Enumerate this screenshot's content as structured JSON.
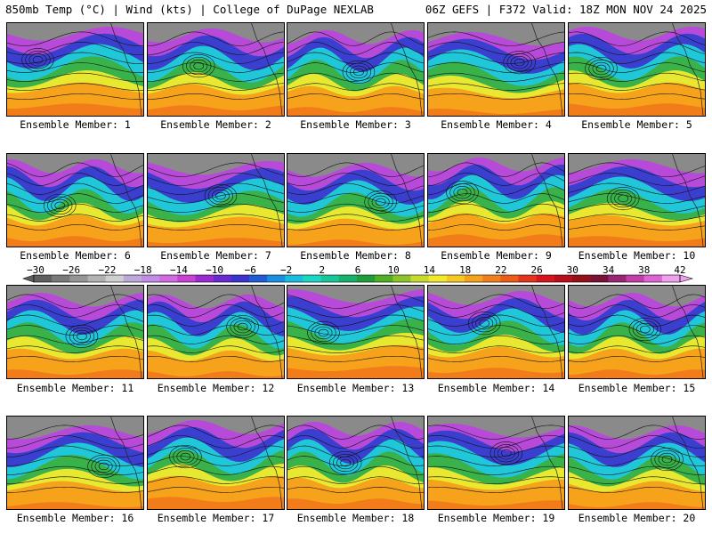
{
  "header": {
    "left": "850mb Temp (°C) | Wind (kts) | College of DuPage NEXLAB",
    "right": "06Z GEFS | F372 Valid: 18Z MON NOV 24 2025"
  },
  "members": [
    {
      "label": "Ensemble Member: 1",
      "variant": 0
    },
    {
      "label": "Ensemble Member: 2",
      "variant": 1
    },
    {
      "label": "Ensemble Member: 3",
      "variant": 2
    },
    {
      "label": "Ensemble Member: 4",
      "variant": 3
    },
    {
      "label": "Ensemble Member: 5",
      "variant": 4
    },
    {
      "label": "Ensemble Member: 6",
      "variant": 5
    },
    {
      "label": "Ensemble Member: 7",
      "variant": 6
    },
    {
      "label": "Ensemble Member: 8",
      "variant": 7
    },
    {
      "label": "Ensemble Member: 9",
      "variant": 8
    },
    {
      "label": "Ensemble Member: 10",
      "variant": 9
    },
    {
      "label": "Ensemble Member: 11",
      "variant": 10
    },
    {
      "label": "Ensemble Member: 12",
      "variant": 11
    },
    {
      "label": "Ensemble Member: 13",
      "variant": 12
    },
    {
      "label": "Ensemble Member: 14",
      "variant": 13
    },
    {
      "label": "Ensemble Member: 15",
      "variant": 14
    },
    {
      "label": "Ensemble Member: 16",
      "variant": 15
    },
    {
      "label": "Ensemble Member: 17",
      "variant": 16
    },
    {
      "label": "Ensemble Member: 18",
      "variant": 17
    },
    {
      "label": "Ensemble Member: 19",
      "variant": 18
    },
    {
      "label": "Ensemble Member: 20",
      "variant": 19
    }
  ],
  "colorbar": {
    "ticks": [
      "-30",
      "-26",
      "-22",
      "-18",
      "-14",
      "-10",
      "-6",
      "-2",
      "2",
      "6",
      "10",
      "14",
      "18",
      "22",
      "26",
      "30",
      "34",
      "38",
      "42"
    ],
    "colors": [
      "#5f5f5f",
      "#7a7a7a",
      "#959595",
      "#b2b2b2",
      "#cfcfcf",
      "#bba9d9",
      "#c28ce6",
      "#d36be0",
      "#c840d4",
      "#9b2ad1",
      "#6a2ad1",
      "#3b34cf",
      "#1f5cd6",
      "#1a8fe0",
      "#19bde0",
      "#1ad7c2",
      "#17c79a",
      "#18b06d",
      "#1f9d3b",
      "#4faf25",
      "#8cc42a",
      "#c8d92e",
      "#f1ea2c",
      "#f7c821",
      "#f6a21a",
      "#f2801a",
      "#ee5c1a",
      "#e5341c",
      "#d9141e",
      "#b80f1c",
      "#951018",
      "#7a1238",
      "#9a2573",
      "#c33ea9",
      "#e063d6",
      "#f0a0ee"
    ],
    "map_colors": {
      "cold": "#8a8a8a",
      "purple": "#b84ad9",
      "blue": "#3b3fd0",
      "cyan": "#1fc7d8",
      "green": "#39b24a",
      "yellow": "#e8e830",
      "orange": "#f6a21a",
      "warm": "#f27c1a"
    }
  }
}
